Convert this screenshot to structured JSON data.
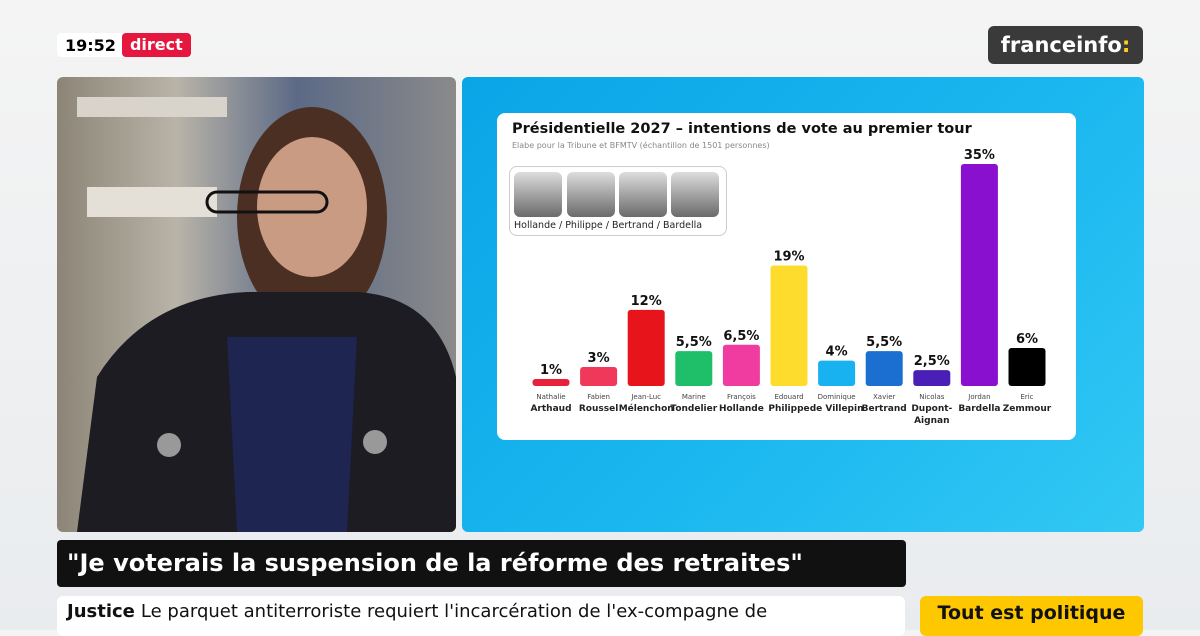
{
  "header": {
    "time": "19:52",
    "live_label": "direct",
    "logo_text": "franceinfo",
    "logo_colon": ":"
  },
  "chart_data": {
    "type": "bar",
    "title": "Présidentielle 2027 – intentions de vote au premier tour",
    "subtitle": "Elabe pour la Tribune et  BFMTV (échantillon de 1501 personnes)",
    "hypothesis_caption": "Hollande / Philippe / Bertrand / Bardella",
    "categories": [
      {
        "first": "Nathalie",
        "last": "Arthaud"
      },
      {
        "first": "Fabien",
        "last": "Roussel"
      },
      {
        "first": "Jean-Luc",
        "last": "Mélenchon"
      },
      {
        "first": "Marine",
        "last": "Tondelier"
      },
      {
        "first": "François",
        "last": "Hollande"
      },
      {
        "first": "Edouard",
        "last": "Philippe"
      },
      {
        "first": "Dominique",
        "last": "de Villepin"
      },
      {
        "first": "Xavier",
        "last": "Bertrand"
      },
      {
        "first": "Nicolas",
        "last": "Dupont-",
        "last2": "Aignan"
      },
      {
        "first": "Jordan",
        "last": "Bardella"
      },
      {
        "first": "Eric",
        "last": "Zemmour"
      }
    ],
    "values": [
      1,
      3,
      12,
      5.5,
      6.5,
      19,
      4,
      5.5,
      2.5,
      35,
      6
    ],
    "value_labels": [
      "1%",
      "3%",
      "12%",
      "5,5%",
      "6,5%",
      "19%",
      "4%",
      "5,5%",
      "2,5%",
      "35%",
      "6%"
    ],
    "colors": [
      "#e8213a",
      "#f0385a",
      "#e8141c",
      "#1fbf6a",
      "#f03ca0",
      "#fddc2e",
      "#19b2f0",
      "#1a6fd0",
      "#4a1fb8",
      "#8a10d0",
      "#000000"
    ],
    "ylim": [
      0,
      35
    ],
    "grid": false
  },
  "lower_third": {
    "quote": "\"Je voterais la suspension de la réforme des retraites\""
  },
  "ticker": {
    "category": "Justice",
    "text": "Le parquet antiterroriste requiert l'incarcération de l'ex-compagne de"
  },
  "show": {
    "name": "Tout est politique"
  }
}
